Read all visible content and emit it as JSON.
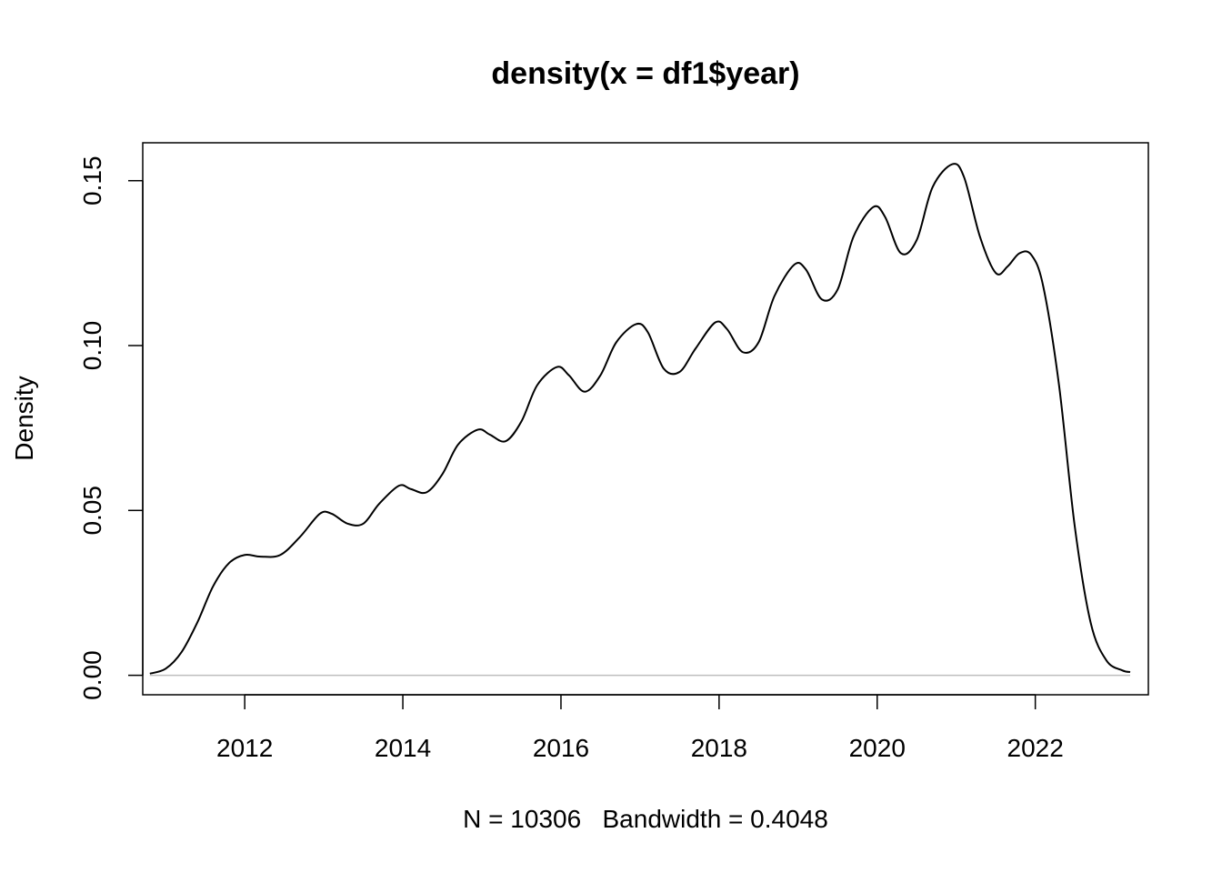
{
  "chart_data": {
    "type": "line",
    "title": "density(x = df1$year)",
    "xlabel": "N = 10306   Bandwidth = 0.4048",
    "ylabel": "Density",
    "xlim": [
      2010.71,
      2023.43
    ],
    "ylim": [
      -0.0059,
      0.1615
    ],
    "x_ticks": [
      2012,
      2014,
      2016,
      2018,
      2020,
      2022
    ],
    "x_tick_labels": [
      "2012",
      "2014",
      "2016",
      "2018",
      "2020",
      "2022"
    ],
    "y_ticks": [
      0.0,
      0.05,
      0.1,
      0.15
    ],
    "y_tick_labels": [
      "0.00",
      "0.05",
      "0.10",
      "0.15"
    ],
    "baseline": 0,
    "grid": false,
    "colors": {
      "line": "#000000",
      "baseline": "#bebebe"
    },
    "series": [
      {
        "x": [
          2010.8,
          2011.0,
          2011.2,
          2011.4,
          2011.6,
          2011.8,
          2012.0,
          2012.2,
          2012.45,
          2012.7,
          2012.95,
          2013.1,
          2013.3,
          2013.5,
          2013.7,
          2013.95,
          2014.1,
          2014.3,
          2014.5,
          2014.7,
          2014.95,
          2015.1,
          2015.3,
          2015.5,
          2015.7,
          2015.95,
          2016.1,
          2016.3,
          2016.5,
          2016.7,
          2016.95,
          2017.1,
          2017.3,
          2017.5,
          2017.7,
          2017.95,
          2018.1,
          2018.3,
          2018.5,
          2018.7,
          2018.95,
          2019.1,
          2019.3,
          2019.5,
          2019.7,
          2019.95,
          2020.1,
          2020.3,
          2020.5,
          2020.7,
          2020.95,
          2021.1,
          2021.3,
          2021.5,
          2021.65,
          2021.8,
          2021.95,
          2022.1,
          2022.3,
          2022.5,
          2022.7,
          2022.9,
          2023.1,
          2023.2
        ],
        "y": [
          0.0005,
          0.002,
          0.007,
          0.016,
          0.027,
          0.034,
          0.0365,
          0.036,
          0.0365,
          0.042,
          0.049,
          0.049,
          0.046,
          0.046,
          0.052,
          0.0575,
          0.0565,
          0.0555,
          0.061,
          0.07,
          0.0745,
          0.073,
          0.071,
          0.077,
          0.088,
          0.0935,
          0.091,
          0.086,
          0.091,
          0.101,
          0.1065,
          0.104,
          0.093,
          0.092,
          0.099,
          0.107,
          0.105,
          0.098,
          0.101,
          0.115,
          0.1245,
          0.123,
          0.114,
          0.117,
          0.133,
          0.142,
          0.139,
          0.128,
          0.132,
          0.148,
          0.155,
          0.151,
          0.133,
          0.122,
          0.124,
          0.128,
          0.1275,
          0.118,
          0.088,
          0.045,
          0.016,
          0.0045,
          0.0015,
          0.001
        ]
      }
    ]
  }
}
